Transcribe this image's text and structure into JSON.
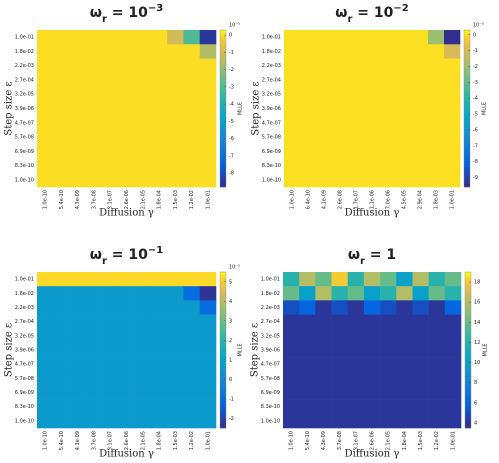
{
  "chart_data": [
    {
      "type": "heatmap",
      "title": [
        "ω",
        "r",
        " = 10",
        "−3"
      ],
      "xlabel": "Diffusion γ",
      "ylabel": "Step size ε",
      "colorbar_label": "MLLE",
      "colorbar_scale": "10⁻⁵",
      "colormap": "parula",
      "x_labels": [
        "1.0e-10",
        "5.4e-10",
        "4.3e-09",
        "3.7e-08",
        "3.1e-07",
        "2.6e-06",
        "2.1e-05",
        "1.8e-04",
        "1.5e-03",
        "1.2e-02",
        "1.0e-01"
      ],
      "y_labels": [
        "1.0e-01",
        "1.8e-02",
        "2.2e-03",
        "2.7e-04",
        "3.2e-05",
        "3.9e-06",
        "4.7e-07",
        "5.7e-08",
        "6.9e-09",
        "8.3e-10",
        "1.0e-10"
      ],
      "clim": [
        -8.8,
        0.3
      ],
      "cticks": [
        0,
        -1,
        -2,
        -3,
        -4,
        -5,
        -6,
        -7,
        -8
      ],
      "z": [
        [
          0,
          0,
          0,
          0,
          0,
          0,
          0,
          0,
          -1,
          -3,
          -8.5
        ],
        [
          0,
          0,
          0,
          0,
          0,
          0,
          0,
          0,
          0,
          0,
          -1.5
        ],
        [
          0,
          0,
          0,
          0,
          0,
          0,
          0,
          0,
          0,
          0,
          0
        ],
        [
          0,
          0,
          0,
          0,
          0,
          0,
          0,
          0,
          0,
          0,
          0
        ],
        [
          0,
          0,
          0,
          0,
          0,
          0,
          0,
          0,
          0,
          0,
          0
        ],
        [
          0,
          0,
          0,
          0,
          0,
          0,
          0,
          0,
          0,
          0,
          0
        ],
        [
          0,
          0,
          0,
          0,
          0,
          0,
          0,
          0,
          0,
          0,
          0
        ],
        [
          0,
          0,
          0,
          0,
          0,
          0,
          0,
          0,
          0,
          0,
          0
        ],
        [
          0,
          0,
          0,
          0,
          0,
          0,
          0,
          0,
          0,
          0,
          0
        ],
        [
          0,
          0,
          0,
          0,
          0,
          0,
          0,
          0,
          0,
          0,
          0
        ],
        [
          0,
          0,
          0,
          0,
          0,
          0,
          0,
          0,
          0,
          0,
          0
        ]
      ]
    },
    {
      "type": "heatmap",
      "title": [
        "ω",
        "r",
        " = 10",
        "−2"
      ],
      "xlabel": "Diffusion γ",
      "ylabel": "Step size ε",
      "colorbar_label": "MLLE",
      "colorbar_scale": "10⁻⁵",
      "colormap": "parula",
      "x_labels": [
        "1.0e-10",
        "6.4e-10",
        "4.1e-09",
        "2.6e-08",
        "1.7e-07",
        "1.1e-06",
        "7.0e-06",
        "4.5e-05",
        "2.9e-04",
        "1.8e-03",
        "1.0e-01"
      ],
      "y_labels": [
        "1.0e-01",
        "1.8e-02",
        "2.2e-03",
        "2.7e-04",
        "3.2e-05",
        "3.9e-06",
        "4.7e-07",
        "5.7e-08",
        "6.9e-09",
        "8.3e-10",
        "1.0e-10"
      ],
      "clim": [
        -9.6,
        0.3
      ],
      "cticks": [
        0,
        -1,
        -2,
        -3,
        -4,
        -5,
        -6,
        -7,
        -8,
        -9
      ],
      "z": [
        [
          0,
          0,
          0,
          0,
          0,
          0,
          0,
          0,
          0,
          -2,
          -9.5
        ],
        [
          0,
          0,
          0,
          0,
          0,
          0,
          0,
          0,
          0,
          0,
          -1
        ],
        [
          0,
          0,
          0,
          0,
          0,
          0,
          0,
          0,
          0,
          0,
          0
        ],
        [
          0,
          0,
          0,
          0,
          0,
          0,
          0,
          0,
          0,
          0,
          0
        ],
        [
          0,
          0,
          0,
          0,
          0,
          0,
          0,
          0,
          0,
          0,
          0
        ],
        [
          0,
          0,
          0,
          0,
          0,
          0,
          0,
          0,
          0,
          0,
          0
        ],
        [
          0,
          0,
          0,
          0,
          0,
          0,
          0,
          0,
          0,
          0,
          0
        ],
        [
          0,
          0,
          0,
          0,
          0,
          0,
          0,
          0,
          0,
          0,
          0
        ],
        [
          0,
          0,
          0,
          0,
          0,
          0,
          0,
          0,
          0,
          0,
          0
        ],
        [
          0,
          0,
          0,
          0,
          0,
          0,
          0,
          0,
          0,
          0,
          0
        ],
        [
          0,
          0,
          0,
          0,
          0,
          0,
          0,
          0,
          0,
          0,
          0
        ]
      ]
    },
    {
      "type": "heatmap",
      "title": [
        "ω",
        "r",
        " = 10",
        "−1"
      ],
      "xlabel": "Diffusion γ",
      "ylabel": "Step size ε",
      "colorbar_label": "MLLE",
      "colorbar_scale": "10⁻⁵",
      "colormap": "parula",
      "x_labels": [
        "1.0e-10",
        "5.4e-10",
        "4.3e-09",
        "3.7e-08",
        "3.1e-07",
        "2.6e-06",
        "2.1e-05",
        "1.8e-04",
        "1.5e-03",
        "1.2e-02",
        "1.0e-01"
      ],
      "y_labels": [
        "1.0e-01",
        "1.8e-02",
        "2.2e-03",
        "2.7e-04",
        "3.2e-05",
        "3.9e-06",
        "4.7e-07",
        "5.7e-08",
        "6.9e-09",
        "8.3e-10",
        "1.0e-10"
      ],
      "clim": [
        -2.5,
        5.5
      ],
      "cticks": [
        5,
        4,
        3,
        2,
        1,
        0,
        -1,
        -2
      ],
      "z": [
        [
          5.2,
          5.2,
          5.2,
          5.2,
          5.2,
          5.2,
          5.2,
          5.2,
          5.2,
          5.2,
          5.2
        ],
        [
          0.6,
          0.6,
          0.6,
          0.6,
          0.6,
          0.6,
          0.6,
          0.6,
          0.6,
          -1,
          -2.3
        ],
        [
          0.6,
          0.6,
          0.6,
          0.6,
          0.6,
          0.6,
          0.6,
          0.6,
          0.6,
          0.6,
          -1
        ],
        [
          0.6,
          0.6,
          0.6,
          0.6,
          0.6,
          0.6,
          0.6,
          0.6,
          0.6,
          0.6,
          0.6
        ],
        [
          0.6,
          0.6,
          0.6,
          0.6,
          0.6,
          0.6,
          0.6,
          0.6,
          0.6,
          0.6,
          0.6
        ],
        [
          0.6,
          0.6,
          0.6,
          0.6,
          0.6,
          0.6,
          0.6,
          0.6,
          0.6,
          0.6,
          0.6
        ],
        [
          0.6,
          0.6,
          0.6,
          0.6,
          0.6,
          0.6,
          0.6,
          0.6,
          0.6,
          0.6,
          0.6
        ],
        [
          0.6,
          0.6,
          0.6,
          0.6,
          0.6,
          0.6,
          0.6,
          0.6,
          0.6,
          0.6,
          0.6
        ],
        [
          0.6,
          0.6,
          0.6,
          0.6,
          0.6,
          0.6,
          0.6,
          0.6,
          0.6,
          0.6,
          0.6
        ],
        [
          0.6,
          0.6,
          0.6,
          0.6,
          0.6,
          0.6,
          0.6,
          0.6,
          0.6,
          0.6,
          0.6
        ],
        [
          0.6,
          0.6,
          0.6,
          0.6,
          0.6,
          0.6,
          0.6,
          0.6,
          0.6,
          0.6,
          0.6
        ]
      ]
    },
    {
      "type": "heatmap",
      "title": [
        "ω",
        "r",
        " = 1"
      ],
      "xlabel": "Diffusion γ",
      "ylabel": "Step size ε",
      "colorbar_label": "MLLE",
      "colormap": "parula",
      "x_labels": [
        "1.0e-10",
        "5.4e-10",
        "4.3e-09",
        "3.7e-08",
        "3.1e-07",
        "2.6e-06",
        "2.1e-05",
        "1.8e-04",
        "1.5e-03",
        "1.2e-02",
        "1.0e-01"
      ],
      "y_labels": [
        "1.0e-01",
        "1.8e-02",
        "2.2e-03",
        "2.7e-04",
        "3.2e-05",
        "3.9e-06",
        "4.7e-07",
        "5.7e-08",
        "6.9e-09",
        "8.3e-10",
        "1.0e-10"
      ],
      "clim": [
        3.5,
        19
      ],
      "cticks": [
        18,
        16,
        14,
        12,
        10,
        8,
        6,
        4
      ],
      "z": [
        [
          12,
          16,
          14,
          18,
          12,
          16,
          14,
          10,
          16,
          12,
          14
        ],
        [
          14,
          10,
          16,
          12,
          14,
          10,
          12,
          16,
          10,
          14,
          12
        ],
        [
          5,
          6,
          4,
          5,
          4,
          6,
          5,
          4,
          5,
          4,
          6
        ],
        [
          4,
          4,
          4,
          4,
          4,
          4,
          4,
          4,
          4,
          4,
          4
        ],
        [
          4,
          4,
          4,
          4,
          4,
          4,
          4,
          4,
          4,
          4,
          4
        ],
        [
          4,
          4,
          4,
          4,
          4,
          4,
          4,
          4,
          4,
          4,
          4
        ],
        [
          4,
          4,
          4,
          4,
          4,
          4,
          4,
          4,
          4,
          4,
          4
        ],
        [
          4,
          4,
          4,
          4,
          4,
          4,
          4,
          4,
          4,
          4,
          4
        ],
        [
          4,
          4,
          4,
          4,
          4,
          4,
          4,
          4,
          4,
          4,
          4
        ],
        [
          4,
          4,
          4,
          4,
          4,
          4,
          4,
          4,
          4,
          4,
          4
        ],
        [
          4,
          4,
          4,
          4,
          4,
          4,
          4,
          4,
          4,
          4,
          4
        ]
      ]
    }
  ]
}
